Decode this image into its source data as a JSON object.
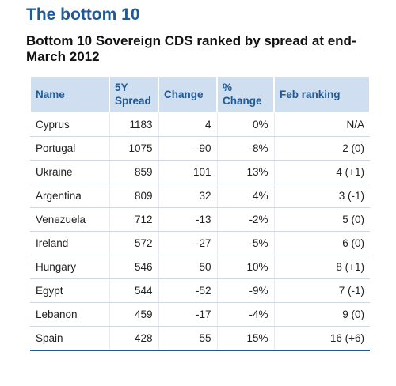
{
  "page": {
    "title": "The bottom 10",
    "subtitle": "Bottom 10 Sovereign CDS ranked by spread at end-March 2012"
  },
  "colors": {
    "title": "#1f5a96",
    "header_bg": "#cfdff0",
    "header_text": "#1f5a96"
  },
  "chart_data": {
    "type": "table",
    "title": "Bottom 10 Sovereign CDS ranked by spread at end-March 2012",
    "columns": [
      "Name",
      "5Y\nSpread",
      "Change",
      "%\nChange",
      "Feb ranking"
    ],
    "rows": [
      [
        "Cyprus",
        "1183",
        "4",
        "0%",
        "N/A"
      ],
      [
        "Portugal",
        "1075",
        "-90",
        "-8%",
        "2 (0)"
      ],
      [
        "Ukraine",
        "859",
        "101",
        "13%",
        "4 (+1)"
      ],
      [
        "Argentina",
        "809",
        "32",
        "4%",
        "3 (-1)"
      ],
      [
        "Venezuela",
        "712",
        "-13",
        "-2%",
        "5 (0)"
      ],
      [
        "Ireland",
        "572",
        "-27",
        "-5%",
        "6 (0)"
      ],
      [
        "Hungary",
        "546",
        "50",
        "10%",
        "8 (+1)"
      ],
      [
        "Egypt",
        "544",
        "-52",
        "-9%",
        "7 (-1)"
      ],
      [
        "Lebanon",
        "459",
        "-17",
        "-4%",
        "9 (0)"
      ],
      [
        "Spain",
        "428",
        "55",
        "15%",
        "16 (+6)"
      ]
    ]
  }
}
